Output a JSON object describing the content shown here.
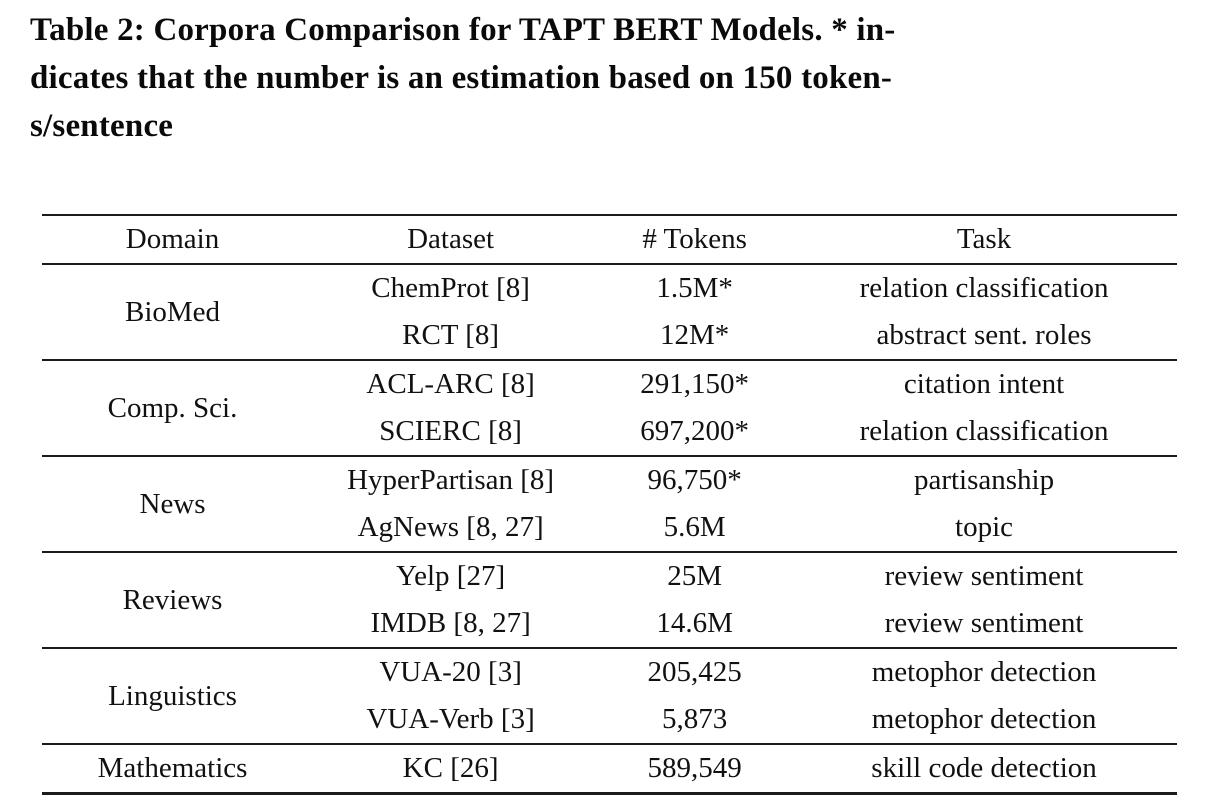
{
  "caption": {
    "lines": [
      "Table 2: Corpora Comparison for TAPT BERT Models. * in-",
      "dicates that the number is an estimation based on 150 token-",
      "s/sentence"
    ],
    "full_text": "Table 2: Corpora Comparison for TAPT BERT Models. * indicates that the number is an estimation based on 150 tokens/sentence"
  },
  "table": {
    "headers": [
      "Domain",
      "Dataset",
      "# Tokens",
      "Task"
    ],
    "groups": [
      {
        "domain": "BioMed",
        "rows": [
          {
            "dataset": "ChemProt [8]",
            "tokens": "1.5M*",
            "task": "relation classification"
          },
          {
            "dataset": "RCT [8]",
            "tokens": "12M*",
            "task": "abstract sent. roles"
          }
        ]
      },
      {
        "domain": "Comp. Sci.",
        "rows": [
          {
            "dataset": "ACL-ARC [8]",
            "tokens": "291,150*",
            "task": "citation intent"
          },
          {
            "dataset": "SCIERC [8]",
            "tokens": "697,200*",
            "task": "relation classification"
          }
        ]
      },
      {
        "domain": "News",
        "rows": [
          {
            "dataset": "HyperPartisan [8]",
            "tokens": "96,750*",
            "task": "partisanship"
          },
          {
            "dataset": "AgNews [8, 27]",
            "tokens": "5.6M",
            "task": "topic"
          }
        ]
      },
      {
        "domain": "Reviews",
        "rows": [
          {
            "dataset": "Yelp [27]",
            "tokens": "25M",
            "task": "review sentiment"
          },
          {
            "dataset": "IMDB [8, 27]",
            "tokens": "14.6M",
            "task": "review sentiment"
          }
        ]
      },
      {
        "domain": "Linguistics",
        "rows": [
          {
            "dataset": "VUA-20 [3]",
            "tokens": "205,425",
            "task": "metophor detection"
          },
          {
            "dataset": "VUA-Verb [3]",
            "tokens": "5,873",
            "task": "metophor detection"
          }
        ]
      },
      {
        "domain": "Mathematics",
        "rows": [
          {
            "dataset": "KC [26]",
            "tokens": "589,549",
            "task": "skill code detection"
          }
        ]
      }
    ]
  },
  "colors": {
    "text": "#0e0e0e",
    "rule": "#1b1b1b",
    "background": "#ffffff"
  }
}
